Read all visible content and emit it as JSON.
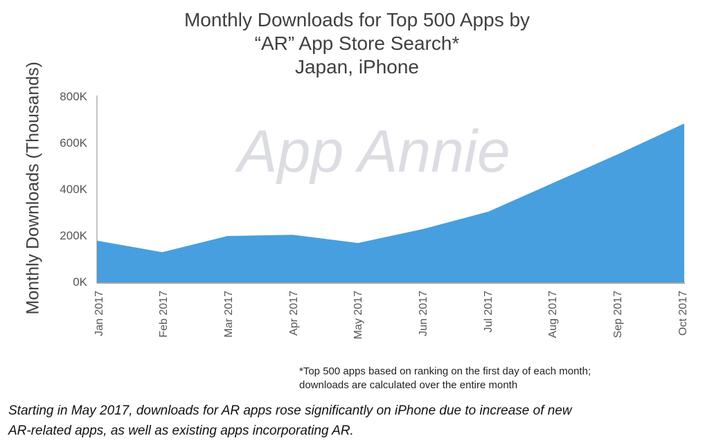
{
  "chart_data": {
    "type": "area",
    "title": "Monthly Downloads for Top 500 Apps by “AR” App Store Search*",
    "subtitle": "Japan, iPhone",
    "xlabel": "",
    "ylabel": "Monthly Downloads (Thousands)",
    "ylim": [
      0,
      800
    ],
    "yticks": [
      "0K",
      "200K",
      "400K",
      "600K",
      "800K"
    ],
    "categories": [
      "Jan 2017",
      "Feb 2017",
      "Mar 2017",
      "Apr 2017",
      "May 2017",
      "Jun 2017",
      "Jul 2017",
      "Aug 2017",
      "Sep 2017",
      "Oct 2017"
    ],
    "series": [
      {
        "name": "Monthly Downloads",
        "values": [
          180,
          130,
          200,
          205,
          170,
          230,
          305,
          430,
          555,
          685
        ],
        "color": "#479fdf"
      }
    ],
    "grid": false,
    "legend": "none",
    "watermark": "App Annie"
  },
  "title": {
    "line1": "Monthly Downloads for Top 500 Apps by",
    "line2": "“AR” App Store Search*",
    "line3": "Japan, iPhone"
  },
  "axis": {
    "ylabel": "Monthly Downloads (Thousands)",
    "yticks": [
      "800K",
      "600K",
      "400K",
      "200K",
      "0K"
    ],
    "xticks": [
      "Jan 2017",
      "Feb 2017",
      "Mar 2017",
      "Apr 2017",
      "May 2017",
      "Jun 2017",
      "Jul 2017",
      "Aug 2017",
      "Sep 2017",
      "Oct 2017"
    ]
  },
  "watermark": "App Annie",
  "footnote": {
    "line1": "*Top 500 apps based on ranking on the first day of each month;",
    "line2": "downloads are calculated over the entire month"
  },
  "caption": {
    "line1": "Starting in May 2017, downloads for AR apps rose significantly on iPhone due to increase of new",
    "line2": "AR-related apps, as well as existing apps incorporating AR."
  },
  "colors": {
    "area": "#479fdf",
    "watermark": "#dcdde3",
    "text": "#404040"
  }
}
